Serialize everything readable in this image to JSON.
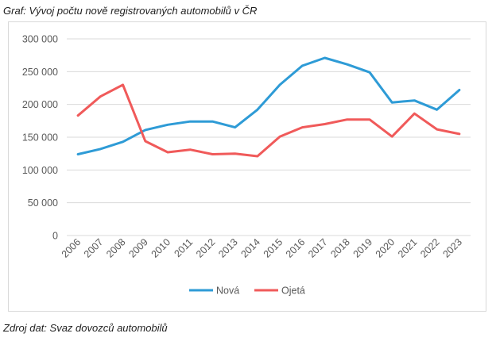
{
  "caption": "Graf: Vývoj počtu nově registrovaných automobilů v ČR",
  "source": "Zdroj dat: Svaz dovozců automobilů",
  "chart_data": {
    "type": "line",
    "title": "",
    "xlabel": "",
    "ylabel": "",
    "x": [
      "2006",
      "2007",
      "2008",
      "2009",
      "2010",
      "2011",
      "2012",
      "2013",
      "2014",
      "2015",
      "2016",
      "2017",
      "2018",
      "2019",
      "2020",
      "2021",
      "2022",
      "2023"
    ],
    "ylim": [
      0,
      300000
    ],
    "yticks": [
      0,
      50000,
      100000,
      150000,
      200000,
      250000,
      300000
    ],
    "ytick_labels": [
      "0",
      "50 000",
      "100 000",
      "150 000",
      "200 000",
      "250 000",
      "300 000"
    ],
    "grid": true,
    "legend_position": "bottom",
    "series": [
      {
        "name": "Nová",
        "color": "#2e9bd6",
        "values": [
          124000,
          132000,
          143000,
          161000,
          169000,
          174000,
          174000,
          165000,
          192000,
          230000,
          259000,
          271000,
          261000,
          249000,
          203000,
          206000,
          192000,
          222000
        ]
      },
      {
        "name": "Ojetá",
        "color": "#f05a5a",
        "values": [
          183000,
          212000,
          230000,
          144000,
          127000,
          131000,
          124000,
          125000,
          121000,
          151000,
          165000,
          170000,
          177000,
          177000,
          151000,
          186000,
          162000,
          155000
        ]
      }
    ]
  }
}
